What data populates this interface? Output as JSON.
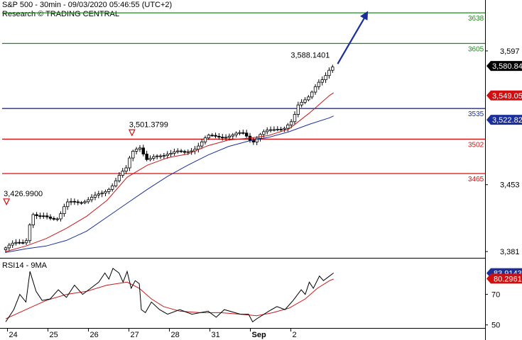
{
  "header": {
    "line1": "S&P 500 - 30min - 09/03/2020 05:46:55 (UTC+2)",
    "line2": "Research © TRADING CENTRAL"
  },
  "chart_data": {
    "type": "candlestick",
    "price_axis": {
      "ticks": [
        {
          "value": 3597,
          "label": "3,597"
        },
        {
          "value": 3453,
          "label": "3,453"
        },
        {
          "value": 3381,
          "label": "3,381"
        }
      ],
      "range": [
        3375,
        3648
      ]
    },
    "levels": [
      {
        "value": 3638,
        "label": "3638",
        "color": "#1f8a1f",
        "role": "resistance"
      },
      {
        "value": 3605,
        "label": "3605",
        "color": "#1f8a1f",
        "role": "resistance"
      },
      {
        "value": 3535,
        "label": "3535",
        "color": "#1a2f9a",
        "role": "pivot"
      },
      {
        "value": 3502,
        "label": "3502",
        "color": "#d01010",
        "role": "support"
      },
      {
        "value": 3465,
        "label": "3465",
        "color": "#d01010",
        "role": "support"
      }
    ],
    "price_badges": [
      {
        "value": 3580.84,
        "label": "3,580.84",
        "color": "#000000",
        "text_color": "#ffffff"
      },
      {
        "value": 3549.05,
        "label": "3,549.05",
        "color": "#d01010",
        "text_color": "#ffffff"
      },
      {
        "value": 3522.82,
        "label": "3,522.82",
        "color": "#1a2f9a",
        "text_color": "#ffffff"
      }
    ],
    "annotations": [
      {
        "label": "3,426.9900",
        "value": 3426.99,
        "day": 0.02,
        "marker": "down-triangle"
      },
      {
        "label": "3,501.3799",
        "value": 3501.38,
        "day": 3.12,
        "marker": "down-triangle"
      },
      {
        "label": "3,588.1401",
        "value": 3588.14,
        "day": 8.55,
        "marker": "none"
      }
    ],
    "arrow": {
      "from_day": 8.2,
      "from_value": 3583,
      "to_day": 8.95,
      "to_value": 3640,
      "color": "#1a2f9a"
    },
    "x_axis": {
      "labels": [
        {
          "label": "24",
          "day": 0.15
        },
        {
          "label": "25",
          "day": 1.15
        },
        {
          "label": "26",
          "day": 2.15
        },
        {
          "label": "27",
          "day": 3.15
        },
        {
          "label": "28",
          "day": 4.15
        },
        {
          "label": "31",
          "day": 5.15
        },
        {
          "label": "Sep",
          "day": 6.15,
          "bold": true
        },
        {
          "label": "2",
          "day": 7.15
        }
      ]
    },
    "close_path": [
      [
        0.0,
        3385
      ],
      [
        0.3,
        3390
      ],
      [
        0.5,
        3393
      ],
      [
        0.65,
        3422
      ],
      [
        0.8,
        3417
      ],
      [
        1.0,
        3418
      ],
      [
        1.3,
        3418
      ],
      [
        1.5,
        3432
      ],
      [
        1.8,
        3435
      ],
      [
        2.1,
        3438
      ],
      [
        2.35,
        3442
      ],
      [
        2.6,
        3452
      ],
      [
        2.8,
        3462
      ],
      [
        3.0,
        3470
      ],
      [
        3.1,
        3488
      ],
      [
        3.3,
        3496
      ],
      [
        3.5,
        3478
      ],
      [
        3.7,
        3482
      ],
      [
        4.0,
        3488
      ],
      [
        4.2,
        3488
      ],
      [
        4.4,
        3486
      ],
      [
        4.7,
        3494
      ],
      [
        5.0,
        3504
      ],
      [
        5.3,
        3506
      ],
      [
        5.6,
        3505
      ],
      [
        5.9,
        3509
      ],
      [
        6.1,
        3500
      ],
      [
        6.3,
        3506
      ],
      [
        6.5,
        3511
      ],
      [
        6.7,
        3515
      ],
      [
        6.9,
        3514
      ],
      [
        7.1,
        3520
      ],
      [
        7.2,
        3537
      ],
      [
        7.35,
        3545
      ],
      [
        7.5,
        3550
      ],
      [
        7.7,
        3560
      ],
      [
        7.85,
        3565
      ],
      [
        8.0,
        3578
      ],
      [
        8.1,
        3583
      ]
    ],
    "ma_fast": {
      "color": "#c81818",
      "points": [
        [
          0.0,
          3381
        ],
        [
          0.5,
          3387
        ],
        [
          1.0,
          3395
        ],
        [
          1.5,
          3406
        ],
        [
          2.0,
          3419
        ],
        [
          2.5,
          3436
        ],
        [
          3.0,
          3461
        ],
        [
          3.5,
          3474
        ],
        [
          4.0,
          3482
        ],
        [
          4.5,
          3486
        ],
        [
          5.0,
          3495
        ],
        [
          5.5,
          3501
        ],
        [
          6.0,
          3503
        ],
        [
          6.5,
          3506
        ],
        [
          7.0,
          3513
        ],
        [
          7.5,
          3530
        ],
        [
          8.0,
          3549
        ],
        [
          8.1,
          3552
        ]
      ]
    },
    "ma_slow": {
      "color": "#1a2f9a",
      "points": [
        [
          0.0,
          3380
        ],
        [
          0.5,
          3384
        ],
        [
          1.0,
          3387
        ],
        [
          1.5,
          3393
        ],
        [
          2.0,
          3403
        ],
        [
          2.5,
          3418
        ],
        [
          3.0,
          3433
        ],
        [
          3.5,
          3448
        ],
        [
          4.0,
          3462
        ],
        [
          4.5,
          3474
        ],
        [
          5.0,
          3485
        ],
        [
          5.5,
          3494
        ],
        [
          6.0,
          3500
        ],
        [
          6.5,
          3504
        ],
        [
          7.0,
          3510
        ],
        [
          7.5,
          3518
        ],
        [
          8.0,
          3525
        ],
        [
          8.1,
          3527
        ]
      ]
    },
    "rsi": {
      "title": "RSI14 - 9MA",
      "ticks": [
        {
          "value": 70,
          "label": "70"
        },
        {
          "value": 50,
          "label": "50"
        }
      ],
      "range": [
        48,
        93
      ],
      "badges": [
        {
          "value": 83.9143,
          "label": "83.9143",
          "color": "#1a2f9a"
        },
        {
          "value": 80.2961,
          "label": "80.2961",
          "color": "#d01010"
        }
      ],
      "rsi_points": [
        [
          0.0,
          52
        ],
        [
          0.2,
          60
        ],
        [
          0.35,
          70
        ],
        [
          0.5,
          65
        ],
        [
          0.6,
          85
        ],
        [
          0.75,
          72
        ],
        [
          0.9,
          66
        ],
        [
          1.1,
          67
        ],
        [
          1.3,
          73
        ],
        [
          1.5,
          68
        ],
        [
          1.7,
          76
        ],
        [
          1.9,
          70
        ],
        [
          2.1,
          74
        ],
        [
          2.3,
          78
        ],
        [
          2.45,
          84
        ],
        [
          2.55,
          80
        ],
        [
          2.65,
          87
        ],
        [
          2.8,
          84
        ],
        [
          2.9,
          78
        ],
        [
          3.0,
          85
        ],
        [
          3.1,
          74
        ],
        [
          3.2,
          79
        ],
        [
          3.3,
          77
        ],
        [
          3.35,
          60
        ],
        [
          3.45,
          58
        ],
        [
          3.6,
          65
        ],
        [
          3.8,
          60
        ],
        [
          4.0,
          57
        ],
        [
          4.3,
          60
        ],
        [
          4.6,
          57
        ],
        [
          5.0,
          59
        ],
        [
          5.2,
          55
        ],
        [
          5.4,
          60
        ],
        [
          5.8,
          57
        ],
        [
          6.0,
          57
        ],
        [
          6.1,
          52
        ],
        [
          6.2,
          54
        ],
        [
          6.5,
          59
        ],
        [
          6.7,
          62
        ],
        [
          6.9,
          60
        ],
        [
          7.1,
          66
        ],
        [
          7.3,
          73
        ],
        [
          7.4,
          70
        ],
        [
          7.5,
          78
        ],
        [
          7.6,
          74
        ],
        [
          7.75,
          82
        ],
        [
          7.85,
          79
        ],
        [
          8.0,
          82
        ],
        [
          8.1,
          84
        ]
      ],
      "ma_points": [
        [
          0.0,
          54
        ],
        [
          0.5,
          60
        ],
        [
          1.0,
          66
        ],
        [
          1.5,
          70
        ],
        [
          2.0,
          72
        ],
        [
          2.5,
          76
        ],
        [
          3.0,
          78
        ],
        [
          3.3,
          74
        ],
        [
          3.6,
          67
        ],
        [
          3.9,
          62
        ],
        [
          4.3,
          59
        ],
        [
          4.8,
          58
        ],
        [
          5.3,
          58
        ],
        [
          5.8,
          57
        ],
        [
          6.2,
          56
        ],
        [
          6.6,
          58
        ],
        [
          7.0,
          61
        ],
        [
          7.4,
          67
        ],
        [
          7.7,
          74
        ],
        [
          8.0,
          79
        ],
        [
          8.1,
          80
        ]
      ]
    }
  }
}
